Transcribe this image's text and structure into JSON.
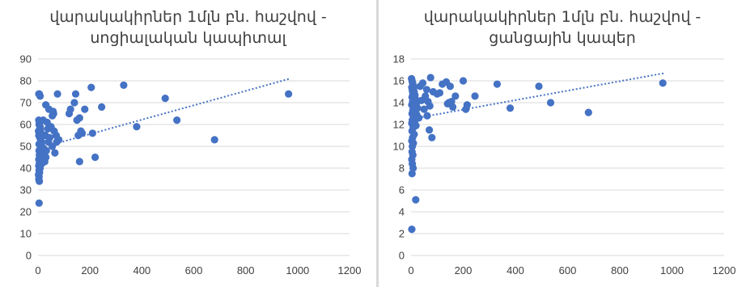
{
  "colors": {
    "marker": "#4472c4",
    "trendline": "#4472c4",
    "grid": "#d9d9d9",
    "text": "#404040"
  },
  "chart_data": [
    {
      "type": "scatter",
      "title": [
        "վարակակիրներ 1մլն բն. հաշվով -",
        "սոցիալական կապիտալ"
      ],
      "xlabel": "",
      "ylabel": "",
      "xlim": [
        0,
        1200
      ],
      "ylim": [
        0,
        90
      ],
      "x_ticks": [
        "0",
        "200",
        "400",
        "600",
        "800",
        "1000",
        "1200"
      ],
      "y_ticks": [
        "0",
        "10",
        "20",
        "30",
        "40",
        "50",
        "60",
        "70",
        "80",
        "90"
      ],
      "grid": "horizontal",
      "trendline": {
        "type": "linear",
        "x": [
          0,
          970
        ],
        "y": [
          49,
          81
        ]
      },
      "points": [
        [
          3,
          74
        ],
        [
          5,
          74
        ],
        [
          8,
          73
        ],
        [
          3,
          62
        ],
        [
          5,
          61
        ],
        [
          4,
          60
        ],
        [
          8,
          59
        ],
        [
          10,
          58
        ],
        [
          2,
          57
        ],
        [
          6,
          56
        ],
        [
          12,
          56
        ],
        [
          3,
          55
        ],
        [
          7,
          54
        ],
        [
          10,
          53
        ],
        [
          14,
          52
        ],
        [
          4,
          51
        ],
        [
          9,
          50
        ],
        [
          15,
          50
        ],
        [
          20,
          49
        ],
        [
          4,
          48
        ],
        [
          11,
          48
        ],
        [
          18,
          47
        ],
        [
          25,
          47
        ],
        [
          5,
          46
        ],
        [
          12,
          46
        ],
        [
          22,
          45
        ],
        [
          30,
          45
        ],
        [
          3,
          44
        ],
        [
          9,
          44
        ],
        [
          16,
          44
        ],
        [
          26,
          43
        ],
        [
          5,
          42
        ],
        [
          14,
          42
        ],
        [
          3,
          41
        ],
        [
          8,
          40
        ],
        [
          4,
          39
        ],
        [
          6,
          38
        ],
        [
          2,
          37
        ],
        [
          4,
          36
        ],
        [
          3,
          35
        ],
        [
          5,
          34
        ],
        [
          4,
          24
        ],
        [
          20,
          62
        ],
        [
          28,
          55
        ],
        [
          32,
          48
        ],
        [
          35,
          61
        ],
        [
          38,
          58
        ],
        [
          40,
          52
        ],
        [
          45,
          54
        ],
        [
          50,
          59
        ],
        [
          55,
          50
        ],
        [
          60,
          65
        ],
        [
          62,
          57
        ],
        [
          65,
          47
        ],
        [
          70,
          55
        ],
        [
          72,
          52
        ],
        [
          75,
          74
        ],
        [
          80,
          53
        ],
        [
          30,
          69
        ],
        [
          42,
          67
        ],
        [
          58,
          66
        ],
        [
          55,
          64
        ],
        [
          120,
          65
        ],
        [
          125,
          67
        ],
        [
          140,
          70
        ],
        [
          145,
          74
        ],
        [
          150,
          62
        ],
        [
          155,
          55
        ],
        [
          160,
          63
        ],
        [
          165,
          57
        ],
        [
          170,
          56
        ],
        [
          180,
          67
        ],
        [
          160,
          43
        ],
        [
          205,
          77
        ],
        [
          210,
          56
        ],
        [
          220,
          45
        ],
        [
          245,
          68
        ],
        [
          330,
          78
        ],
        [
          380,
          59
        ],
        [
          490,
          72
        ],
        [
          535,
          62
        ],
        [
          680,
          53
        ],
        [
          965,
          74
        ]
      ]
    },
    {
      "type": "scatter",
      "title": [
        "վարակակիրներ 1մլն բն. հաշվով -",
        "ցանցային կապեր"
      ],
      "xlabel": "",
      "ylabel": "",
      "xlim": [
        0,
        1200
      ],
      "ylim": [
        0,
        18
      ],
      "x_ticks": [
        "0",
        "200",
        "400",
        "600",
        "800",
        "1000",
        "1200"
      ],
      "y_ticks": [
        "0",
        "2",
        "4",
        "6",
        "8",
        "10",
        "12",
        "14",
        "16",
        "18"
      ],
      "grid": "horizontal",
      "trendline": {
        "type": "linear",
        "x": [
          0,
          970
        ],
        "y": [
          12.5,
          16.7
        ]
      },
      "points": [
        [
          2,
          16.2
        ],
        [
          4,
          16.0
        ],
        [
          6,
          15.8
        ],
        [
          8,
          15.6
        ],
        [
          3,
          15.4
        ],
        [
          10,
          15.3
        ],
        [
          5,
          15.1
        ],
        [
          12,
          15.0
        ],
        [
          7,
          14.8
        ],
        [
          15,
          14.7
        ],
        [
          4,
          14.5
        ],
        [
          9,
          14.4
        ],
        [
          18,
          14.3
        ],
        [
          6,
          14.1
        ],
        [
          13,
          14.0
        ],
        [
          20,
          13.9
        ],
        [
          3,
          13.8
        ],
        [
          11,
          13.6
        ],
        [
          25,
          13.5
        ],
        [
          7,
          13.3
        ],
        [
          16,
          13.2
        ],
        [
          4,
          13.0
        ],
        [
          22,
          12.9
        ],
        [
          9,
          12.7
        ],
        [
          30,
          12.6
        ],
        [
          5,
          12.4
        ],
        [
          14,
          12.3
        ],
        [
          3,
          12.1
        ],
        [
          19,
          11.9
        ],
        [
          8,
          11.7
        ],
        [
          4,
          11.4
        ],
        [
          12,
          11.1
        ],
        [
          6,
          10.8
        ],
        [
          3,
          10.5
        ],
        [
          9,
          10.3
        ],
        [
          5,
          10.0
        ],
        [
          4,
          9.5
        ],
        [
          7,
          9.2
        ],
        [
          3,
          8.8
        ],
        [
          5,
          8.4
        ],
        [
          8,
          8.0
        ],
        [
          4,
          7.5
        ],
        [
          18,
          5.1
        ],
        [
          3,
          2.4
        ],
        [
          35,
          15.5
        ],
        [
          40,
          14.2
        ],
        [
          45,
          15.8
        ],
        [
          50,
          13.4
        ],
        [
          55,
          14.6
        ],
        [
          60,
          15.2
        ],
        [
          62,
          12.8
        ],
        [
          65,
          14.1
        ],
        [
          70,
          11.5
        ],
        [
          72,
          13.7
        ],
        [
          75,
          16.3
        ],
        [
          80,
          10.8
        ],
        [
          85,
          15.0
        ],
        [
          100,
          14.8
        ],
        [
          110,
          14.9
        ],
        [
          120,
          15.7
        ],
        [
          135,
          15.9
        ],
        [
          140,
          13.9
        ],
        [
          145,
          14.0
        ],
        [
          150,
          15.5
        ],
        [
          155,
          14.1
        ],
        [
          160,
          13.6
        ],
        [
          170,
          14.6
        ],
        [
          200,
          16.0
        ],
        [
          210,
          13.4
        ],
        [
          215,
          13.8
        ],
        [
          245,
          14.6
        ],
        [
          330,
          15.7
        ],
        [
          380,
          13.5
        ],
        [
          490,
          15.5
        ],
        [
          535,
          14.0
        ],
        [
          680,
          13.1
        ],
        [
          965,
          15.8
        ]
      ]
    }
  ]
}
